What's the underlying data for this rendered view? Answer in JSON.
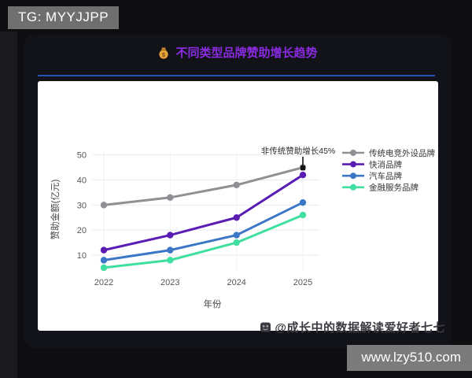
{
  "overlays": {
    "tg_badge": "TG: MYYJJPP",
    "watermark": "@成长中的数据解读爱好者七七",
    "site_badge": "www.lzy510.com"
  },
  "panel": {
    "title": "不同类型品牌赞助增长趋势",
    "title_icon": "money-bag-icon",
    "title_color": "#8a2be2",
    "divider_color": "#2453b4"
  },
  "chart_data": {
    "type": "line",
    "x": [
      2022,
      2023,
      2024,
      2025
    ],
    "xlabel": "年份",
    "ylabel": "赞助金额(亿元)",
    "yticks": [
      10,
      20,
      30,
      40,
      50
    ],
    "ylim": [
      0,
      52
    ],
    "grid": true,
    "legend_position": "right",
    "series": [
      {
        "name": "传统电竞外设品牌",
        "color": "#8f9094",
        "values": [
          30,
          33,
          38,
          45
        ]
      },
      {
        "name": "快消品牌",
        "color": "#5a1db4",
        "values": [
          12,
          18,
          25,
          42
        ]
      },
      {
        "name": "汽车品牌",
        "color": "#3c76c6",
        "values": [
          8,
          12,
          18,
          31
        ]
      },
      {
        "name": "金融服务品牌",
        "color": "#3fdf9f",
        "values": [
          5,
          8,
          15,
          26
        ]
      }
    ],
    "annotation": {
      "text": "非传统赞助增长45%",
      "target_series": "快消品牌",
      "target_x": 2025,
      "target_value": 42
    }
  }
}
